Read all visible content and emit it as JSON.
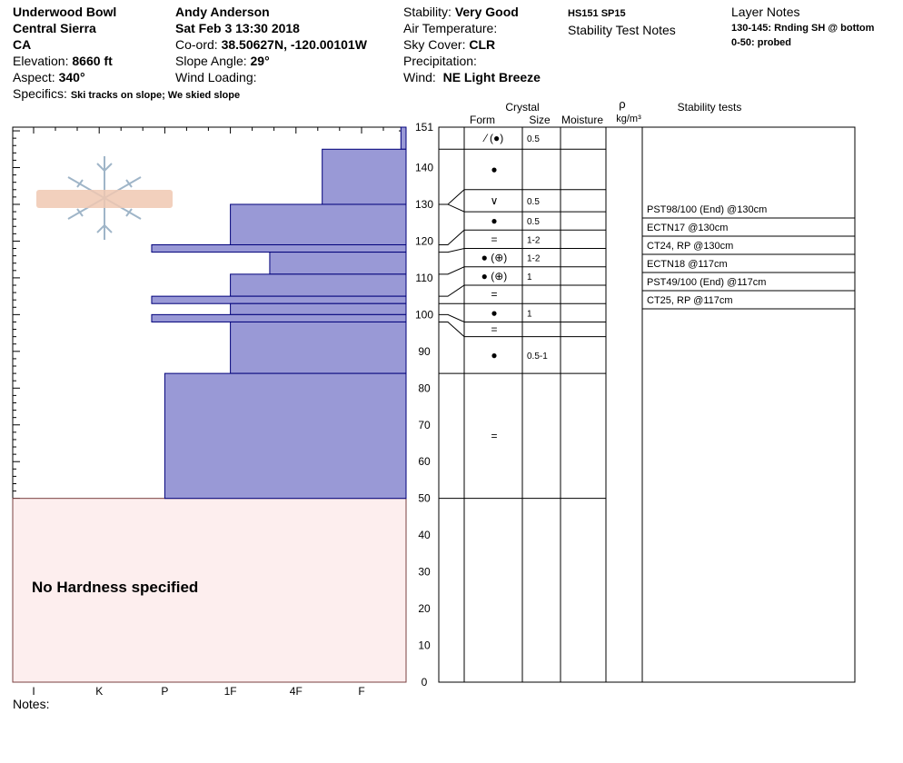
{
  "header": {
    "location": "Underwood Bowl",
    "range": "Central Sierra",
    "state": "CA",
    "elevation_label": "Elevation:",
    "elevation": "8660 ft",
    "aspect_label": "Aspect:",
    "aspect": "340°",
    "specifics_label": "Specifics:",
    "specifics": "Ski tracks on slope; We skied slope",
    "observer": "Andy Anderson",
    "datetime": "Sat Feb 3 13:30 2018",
    "coord_label": "Co-ord:",
    "coord": "38.50627N, -120.00101W",
    "slope_label": "Slope Angle:",
    "slope": "29°",
    "wind_loading_label": "Wind Loading:",
    "stability_label": "Stability:",
    "stability": "Very Good",
    "air_temp_label": "Air Temperature:",
    "sky_label": "Sky Cover:",
    "sky": "CLR",
    "precip_label": "Precipitation:",
    "wind_label": "Wind:",
    "wind": "NE Light Breeze",
    "hs": "HS151 SP15",
    "stability_notes": "Stability Test Notes",
    "layer_notes_title": "Layer Notes",
    "layer_notes": [
      "130-145: Rnding SH @ bottom",
      "0-50: probed"
    ],
    "notes_label": "Notes:"
  },
  "chart_data": {
    "type": "snow-profile",
    "height_axis": {
      "min": 0,
      "max": 151,
      "ticks": [
        0,
        10,
        20,
        30,
        40,
        50,
        60,
        70,
        80,
        90,
        100,
        110,
        120,
        130,
        140,
        151
      ]
    },
    "hardness_scale": [
      "I",
      "K",
      "P",
      "1F",
      "4F",
      "F"
    ],
    "hardness_layers": [
      {
        "from": 145,
        "to": 151,
        "hardness": 5.6
      },
      {
        "from": 130,
        "to": 145,
        "hardness": 4.4
      },
      {
        "from": 119,
        "to": 130,
        "hardness": 3.0
      },
      {
        "from": 117,
        "to": 119,
        "hardness": 1.8
      },
      {
        "from": 111,
        "to": 117,
        "hardness": 3.6
      },
      {
        "from": 105,
        "to": 111,
        "hardness": 3.0
      },
      {
        "from": 103,
        "to": 105,
        "hardness": 1.8
      },
      {
        "from": 100,
        "to": 103,
        "hardness": 3.0
      },
      {
        "from": 98,
        "to": 100,
        "hardness": 1.8
      },
      {
        "from": 84,
        "to": 98,
        "hardness": 3.0
      },
      {
        "from": 50,
        "to": 84,
        "hardness": 2.0
      }
    ],
    "no_hardness_zone": {
      "from": 0,
      "to": 50,
      "label": "No Hardness specified"
    },
    "columns": {
      "crystal": "Crystal",
      "form": "Form",
      "size": "Size",
      "moisture": "Moisture",
      "rho": "ρ",
      "density_unit": "kg/m³",
      "stability_tests": "Stability tests"
    },
    "layer_boundaries": [
      151,
      145,
      134,
      128,
      123,
      118,
      113,
      108,
      103,
      98,
      94,
      84,
      50,
      0
    ],
    "layer_rows": [
      {
        "form": "⁄ (●)",
        "size": "0.5"
      },
      {
        "form": "●",
        "size": ""
      },
      {
        "form": "∨",
        "size": "0.5"
      },
      {
        "form": "●",
        "size": "0.5"
      },
      {
        "form": "=",
        "size": "1-2"
      },
      {
        "form": "● (⊕)",
        "size": "1-2"
      },
      {
        "form": "● (⊕)",
        "size": "1"
      },
      {
        "form": "=",
        "size": ""
      },
      {
        "form": "●",
        "size": "1"
      },
      {
        "form": "=",
        "size": ""
      },
      {
        "form": "●",
        "size": "0.5-1"
      },
      {
        "form": "=",
        "size": ""
      },
      {
        "form": "",
        "size": ""
      }
    ],
    "connectors": [
      {
        "from": 151,
        "to": 151
      },
      {
        "from": 145,
        "to": 145
      },
      {
        "from": 130,
        "to": 134
      },
      {
        "from": 130,
        "to": 128
      },
      {
        "from": 119,
        "to": 123
      },
      {
        "from": 117,
        "to": 118
      },
      {
        "from": 111,
        "to": 113
      },
      {
        "from": 105,
        "to": 108
      },
      {
        "from": 103,
        "to": 103
      },
      {
        "from": 100,
        "to": 98
      },
      {
        "from": 98,
        "to": 94
      },
      {
        "from": 84,
        "to": 84
      },
      {
        "from": 50,
        "to": 50
      }
    ],
    "stability_tests": [
      "PST98/100 (End) @130cm",
      "ECTN17 @130cm",
      "CT24, RP @130cm",
      "ECTN18 @117cm",
      "PST49/100 (End) @117cm",
      "CT25, RP @117cm"
    ],
    "colors": {
      "hardness_fill": "#9999d6",
      "hardness_stroke": "#00007a",
      "no_hardness_fill": "#fdeeee",
      "no_hardness_stroke": "#7a4040"
    }
  }
}
